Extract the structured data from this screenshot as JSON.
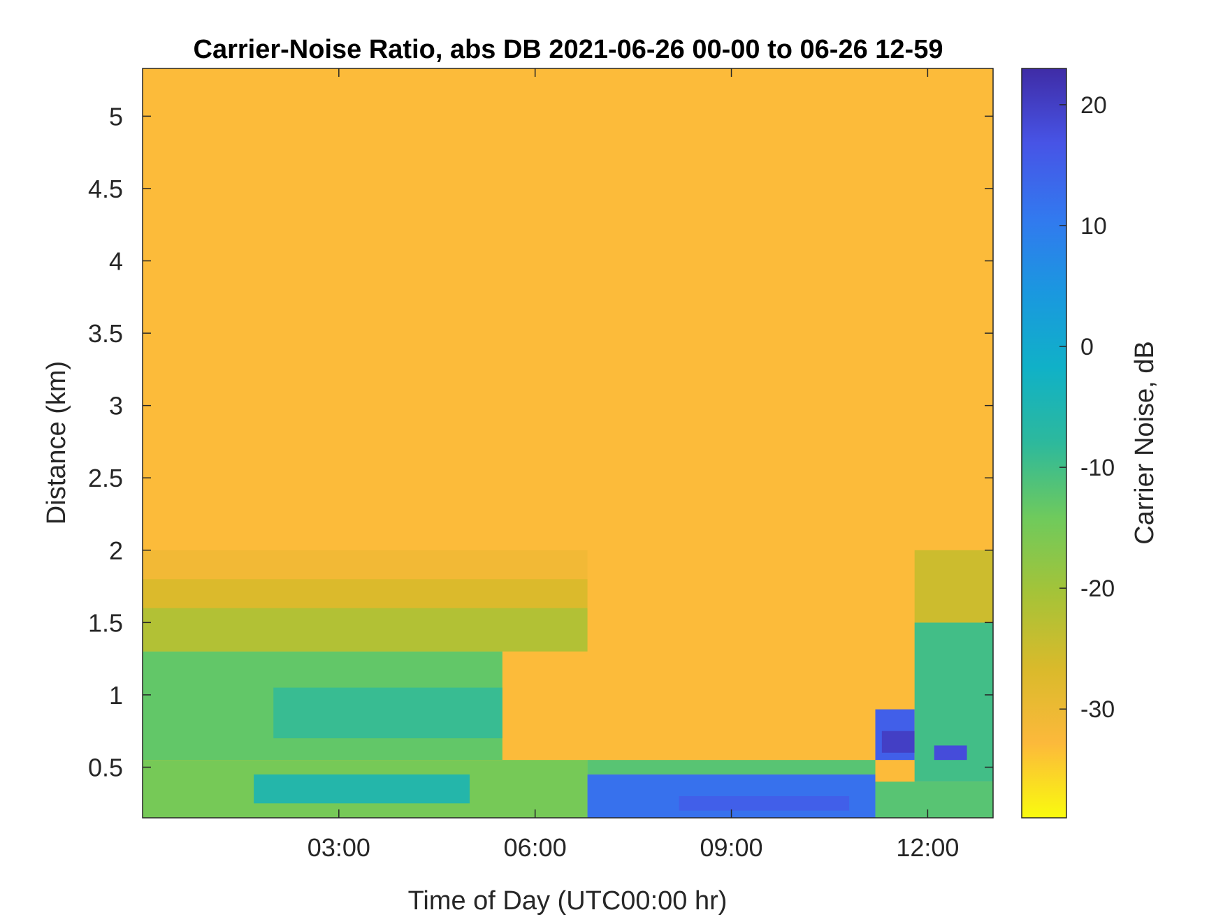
{
  "chart_data": {
    "type": "heatmap",
    "title": "Carrier-Noise Ratio, abs DB 2021-06-26 00-00 to 06-26 12-59",
    "xlabel": "Time of Day (UTC00:00 hr)",
    "ylabel": "Distance (km)",
    "x_ticks": [
      {
        "value": 3,
        "label": "03:00"
      },
      {
        "value": 6,
        "label": "06:00"
      },
      {
        "value": 9,
        "label": "09:00"
      },
      {
        "value": 12,
        "label": "12:00"
      }
    ],
    "y_ticks": [
      {
        "value": 0.5,
        "label": "0.5"
      },
      {
        "value": 1.0,
        "label": "1"
      },
      {
        "value": 1.5,
        "label": "1.5"
      },
      {
        "value": 2.0,
        "label": "2"
      },
      {
        "value": 2.5,
        "label": "2.5"
      },
      {
        "value": 3.0,
        "label": "3"
      },
      {
        "value": 3.5,
        "label": "3.5"
      },
      {
        "value": 4.0,
        "label": "4"
      },
      {
        "value": 4.5,
        "label": "4.5"
      },
      {
        "value": 5.0,
        "label": "5"
      }
    ],
    "xlim": [
      0,
      13
    ],
    "ylim": [
      0.15,
      5.33
    ],
    "grid": false,
    "colorbar": {
      "label": "Carrier Noise, dB",
      "range": [
        -39,
        23
      ],
      "ticks": [
        {
          "value": -30,
          "label": "-30"
        },
        {
          "value": -20,
          "label": "-20"
        },
        {
          "value": -10,
          "label": "-10"
        },
        {
          "value": 0,
          "label": "0"
        },
        {
          "value": 10,
          "label": "10"
        },
        {
          "value": 20,
          "label": "20"
        }
      ],
      "colormap": [
        "#f9fb0e",
        "#fcb93b",
        "#d9ba2b",
        "#a5c338",
        "#6fca5c",
        "#2db99c",
        "#10b1c7",
        "#1a98df",
        "#3279ef",
        "#4754e6",
        "#3f2ca6"
      ]
    },
    "regions": [
      {
        "x": [
          0,
          13
        ],
        "y": [
          0.15,
          5.33
        ],
        "value": -33
      },
      {
        "x": [
          0,
          6.8
        ],
        "y": [
          1.8,
          2.0
        ],
        "value": -31
      },
      {
        "x": [
          0,
          6.8
        ],
        "y": [
          1.6,
          1.8
        ],
        "value": -27
      },
      {
        "x": [
          0,
          6.8
        ],
        "y": [
          1.3,
          1.6
        ],
        "value": -22
      },
      {
        "x": [
          0,
          5.5
        ],
        "y": [
          0.55,
          1.3
        ],
        "value": -13
      },
      {
        "x": [
          2,
          5.5
        ],
        "y": [
          0.7,
          1.05
        ],
        "value": -9
      },
      {
        "x": [
          0,
          6.8
        ],
        "y": [
          0.15,
          0.55
        ],
        "value": -15
      },
      {
        "x": [
          1.7,
          5.0
        ],
        "y": [
          0.25,
          0.45
        ],
        "value": -6
      },
      {
        "x": [
          6.8,
          11.2
        ],
        "y": [
          0.45,
          0.55
        ],
        "value": -12
      },
      {
        "x": [
          6.8,
          11.2
        ],
        "y": [
          0.15,
          0.45
        ],
        "value": 12
      },
      {
        "x": [
          8.2,
          10.8
        ],
        "y": [
          0.2,
          0.3
        ],
        "value": 15
      },
      {
        "x": [
          11.2,
          11.8
        ],
        "y": [
          0.55,
          0.9
        ],
        "value": 15
      },
      {
        "x": [
          11.3,
          11.8
        ],
        "y": [
          0.6,
          0.75
        ],
        "value": 20
      },
      {
        "x": [
          11.8,
          13
        ],
        "y": [
          0.4,
          1.5
        ],
        "value": -10
      },
      {
        "x": [
          12.1,
          12.6
        ],
        "y": [
          0.55,
          0.65
        ],
        "value": 18
      },
      {
        "x": [
          11.2,
          13
        ],
        "y": [
          0.15,
          0.4
        ],
        "value": -12
      },
      {
        "x": [
          11.8,
          13
        ],
        "y": [
          1.5,
          2.0
        ],
        "value": -25
      }
    ]
  }
}
